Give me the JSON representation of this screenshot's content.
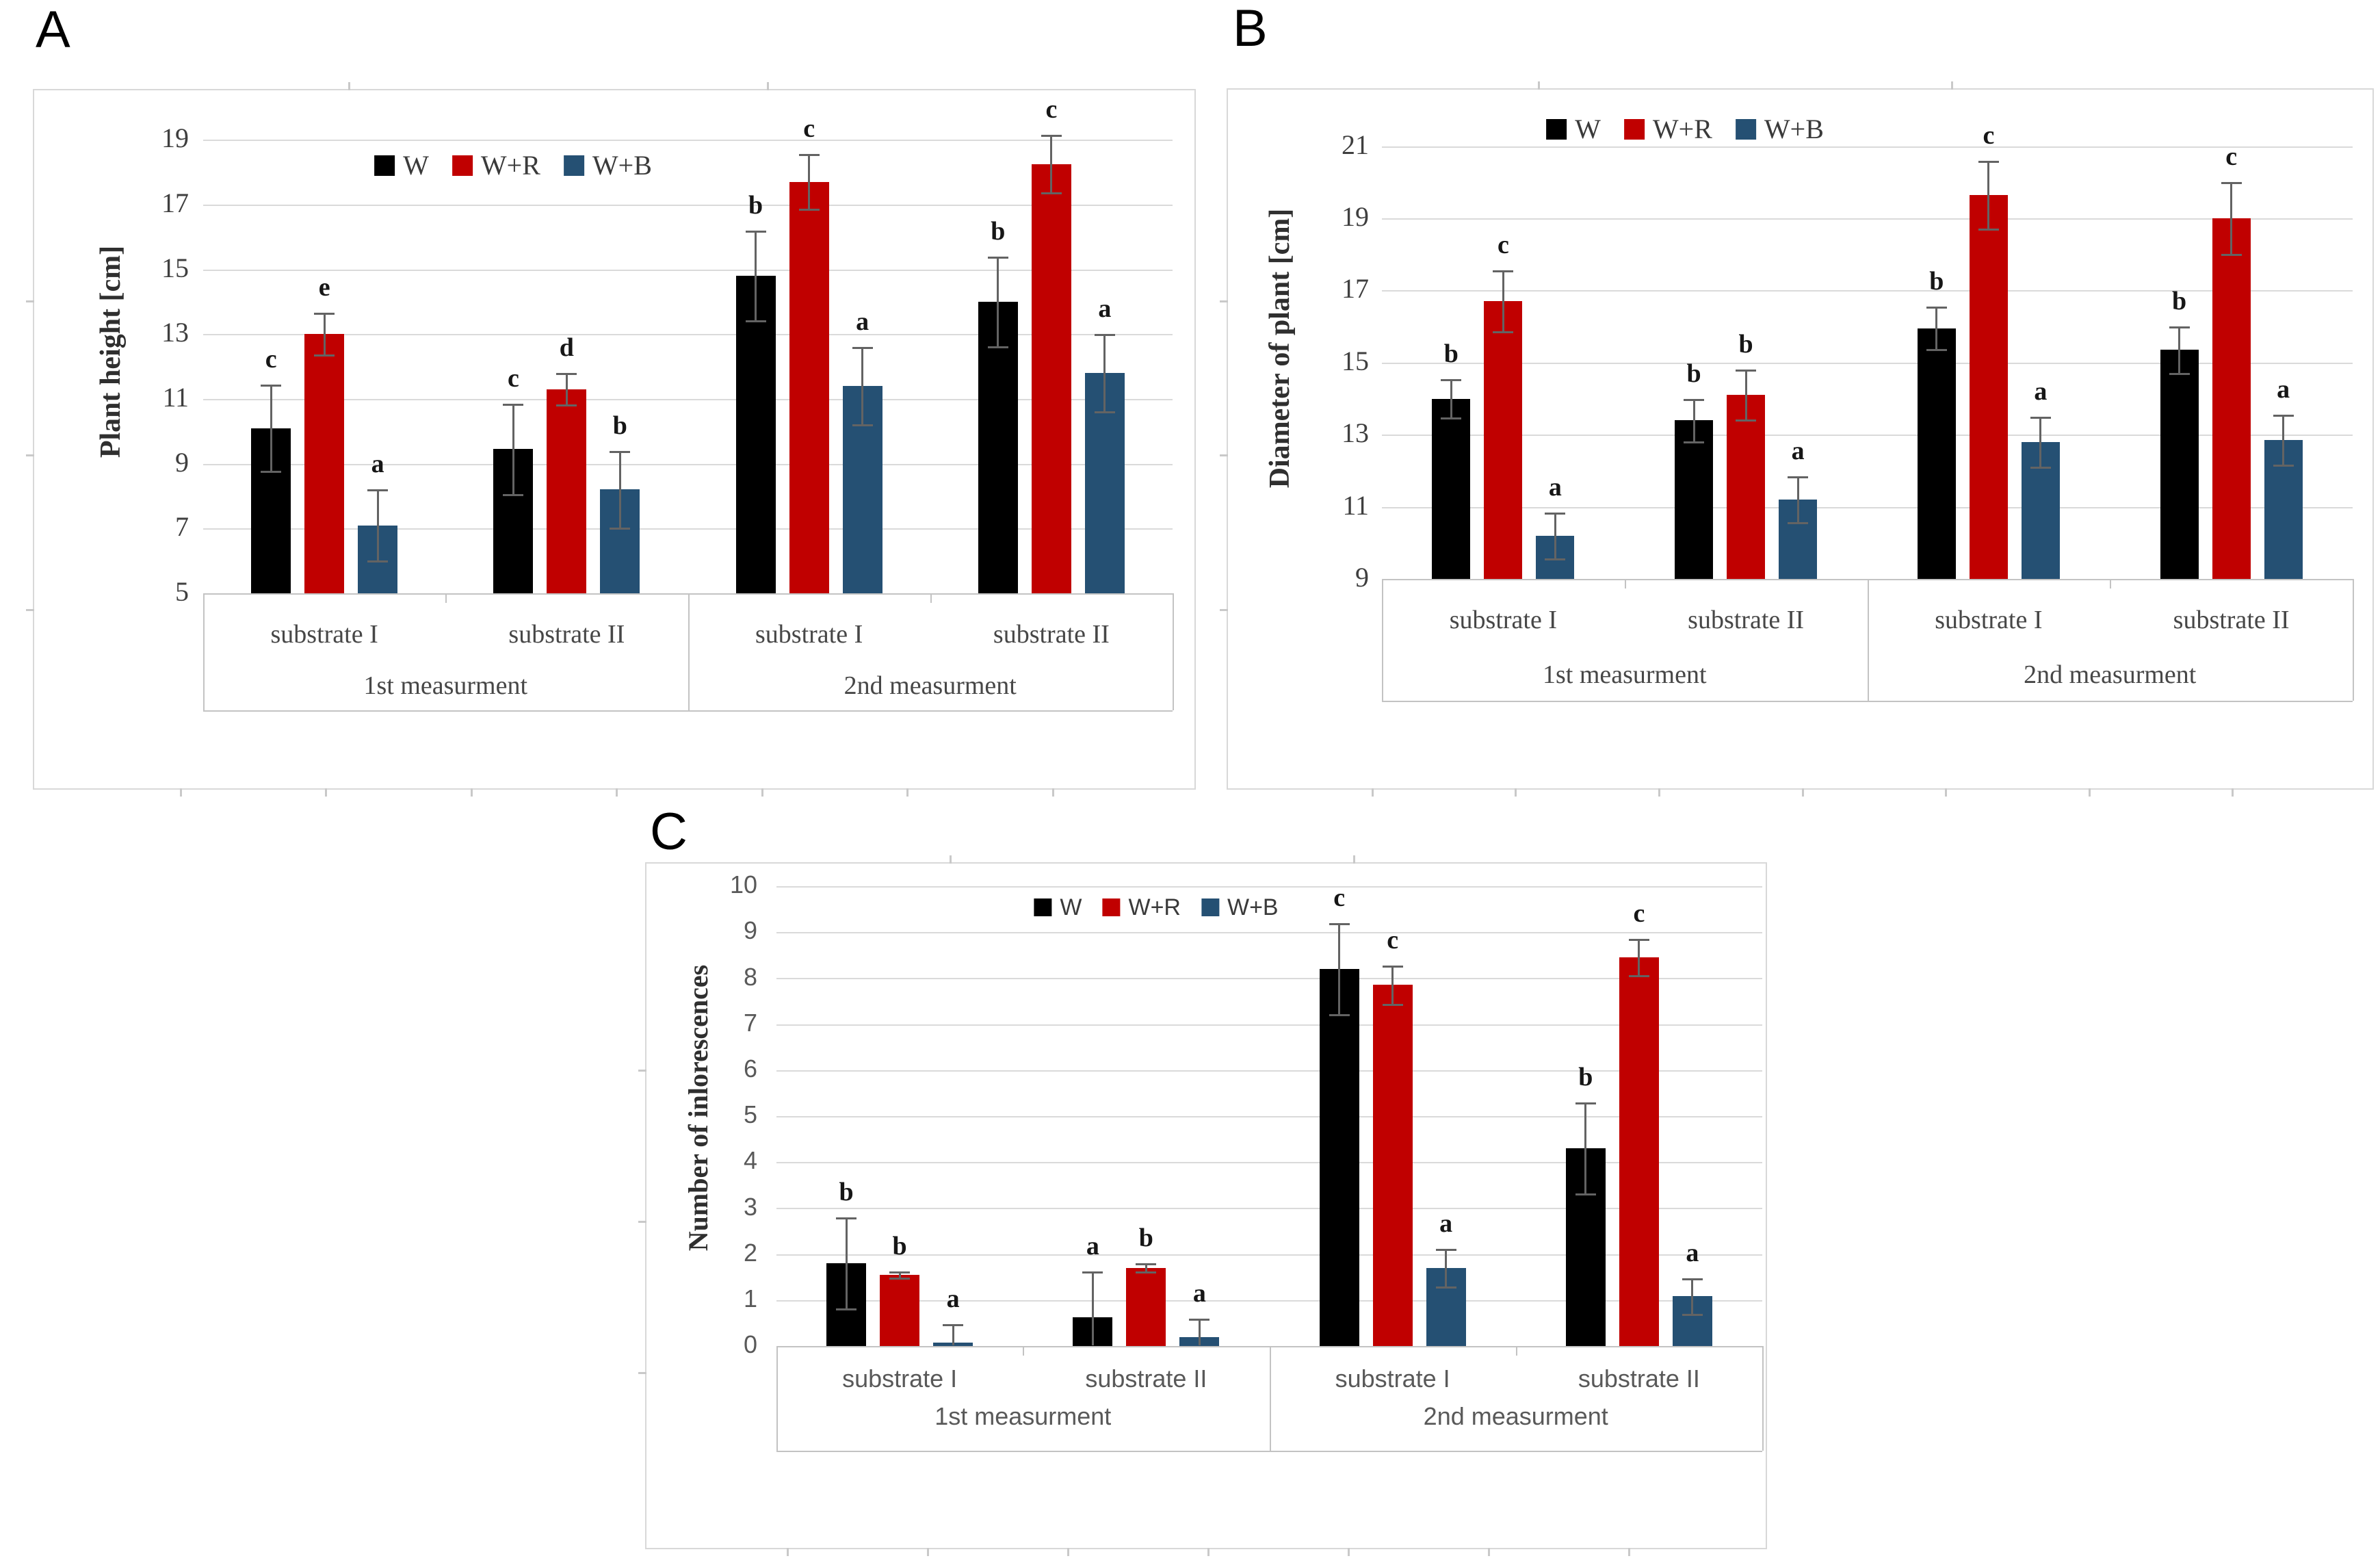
{
  "figure": {
    "background": "#FFFFFF",
    "gridline_color": "#DADADA",
    "axis_line_color": "#C3C3C3",
    "error_bar_color": "#636363",
    "panel_labels": [
      "A",
      "B",
      "C"
    ]
  },
  "series_colors": {
    "W": "#000000",
    "W+R": "#C00000",
    "W+B": "#255073"
  },
  "chart_data": [
    {
      "id": "A",
      "type": "bar",
      "panel_label": "A",
      "title": "",
      "ylabel": "Plant height [cm]",
      "xlabel": "",
      "ylim": [
        5,
        19.9
      ],
      "yticks": [
        5,
        7,
        9,
        11,
        13,
        15,
        17,
        19
      ],
      "grid": true,
      "legend": {
        "entries": [
          "W",
          "W+R",
          "W+B"
        ],
        "position": "inside top, left of center"
      },
      "x_axis": {
        "categories": [
          "substrate I",
          "substrate II",
          "substrate I",
          "substrate II"
        ],
        "group_labels": [
          "1st measurment",
          "2nd measurment"
        ]
      },
      "series": [
        {
          "name": "W",
          "color": "#000000",
          "values": [
            10.1,
            9.45,
            14.8,
            14.0
          ],
          "errors": [
            1.35,
            1.4,
            1.4,
            1.4
          ],
          "letters": [
            "c",
            "c",
            "b",
            "b"
          ]
        },
        {
          "name": "W+R",
          "color": "#C00000",
          "values": [
            13.0,
            11.3,
            17.7,
            18.25
          ],
          "errors": [
            0.65,
            0.5,
            0.85,
            0.9
          ],
          "letters": [
            "e",
            "d",
            "c",
            "c"
          ]
        },
        {
          "name": "W+B",
          "color": "#255073",
          "values": [
            7.1,
            8.2,
            11.4,
            11.8
          ],
          "errors": [
            1.1,
            1.2,
            1.2,
            1.2
          ],
          "letters": [
            "a",
            "b",
            "a",
            "a"
          ]
        }
      ]
    },
    {
      "id": "B",
      "type": "bar",
      "panel_label": "B",
      "title": "",
      "ylabel": "Diameter of plant [cm]",
      "xlabel": "",
      "ylim": [
        9,
        21.8
      ],
      "yticks": [
        9,
        11,
        13,
        15,
        17,
        19,
        21
      ],
      "grid": true,
      "legend": {
        "entries": [
          "W",
          "W+R",
          "W+B"
        ],
        "position": "inside top, left of center"
      },
      "x_axis": {
        "categories": [
          "substrate I",
          "substrate II",
          "substrate I",
          "substrate II"
        ],
        "group_labels": [
          "1st measurment",
          "2nd measurment"
        ]
      },
      "series": [
        {
          "name": "W",
          "color": "#000000",
          "values": [
            14.0,
            13.4,
            15.95,
            15.35
          ],
          "errors": [
            0.55,
            0.6,
            0.6,
            0.65
          ],
          "letters": [
            "b",
            "b",
            "b",
            "b"
          ]
        },
        {
          "name": "W+R",
          "color": "#C00000",
          "values": [
            16.7,
            14.1,
            19.65,
            19.0
          ],
          "errors": [
            0.85,
            0.7,
            0.95,
            1.0
          ],
          "letters": [
            "c",
            "b",
            "c",
            "c"
          ]
        },
        {
          "name": "W+B",
          "color": "#255073",
          "values": [
            10.2,
            11.2,
            12.8,
            12.85
          ],
          "errors": [
            0.65,
            0.65,
            0.7,
            0.7
          ],
          "letters": [
            "a",
            "a",
            "a",
            "a"
          ]
        }
      ]
    },
    {
      "id": "C",
      "type": "bar",
      "panel_label": "C",
      "title": "",
      "ylabel": "Number of inlorescences",
      "xlabel": "",
      "ylim": [
        0,
        10.35
      ],
      "yticks": [
        0,
        1,
        2,
        3,
        4,
        5,
        6,
        7,
        8,
        9,
        10
      ],
      "grid": true,
      "legend": {
        "entries": [
          "W",
          "W+R",
          "W+B"
        ],
        "position": "inside top, left of center"
      },
      "x_axis": {
        "categories": [
          "substrate I",
          "substrate II",
          "substrate I",
          "substrate II"
        ],
        "group_labels": [
          "1st measurment",
          "2nd measurment"
        ]
      },
      "series": [
        {
          "name": "W",
          "color": "#000000",
          "values": [
            1.8,
            0.62,
            8.2,
            4.3
          ],
          "errors": [
            1.0,
            1.0,
            1.0,
            1.0
          ],
          "letters": [
            "b",
            "a",
            "c",
            "b"
          ]
        },
        {
          "name": "W+R",
          "color": "#C00000",
          "values": [
            1.55,
            1.7,
            7.85,
            8.45
          ],
          "errors": [
            0.07,
            0.1,
            0.42,
            0.4
          ],
          "letters": [
            "b",
            "b",
            "c",
            "c"
          ]
        },
        {
          "name": "W+B",
          "color": "#255073",
          "values": [
            0.07,
            0.2,
            1.7,
            1.08
          ],
          "errors": [
            0.4,
            0.4,
            0.42,
            0.4
          ],
          "letters": [
            "a",
            "a",
            "a",
            "a"
          ]
        }
      ]
    }
  ]
}
